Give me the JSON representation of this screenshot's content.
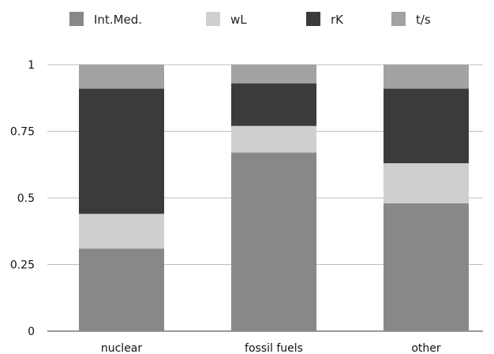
{
  "chart_data": {
    "type": "bar",
    "stacked": true,
    "categories": [
      "nuclear",
      "fossil fuels",
      "other"
    ],
    "series": [
      {
        "name": "Int.Med.",
        "values": [
          0.31,
          0.67,
          0.48
        ],
        "color": "#888888"
      },
      {
        "name": "wL",
        "values": [
          0.13,
          0.1,
          0.15
        ],
        "color": "#cfcfcf"
      },
      {
        "name": "rK",
        "values": [
          0.47,
          0.16,
          0.28
        ],
        "color": "#3b3b3b"
      },
      {
        "name": "t/s",
        "values": [
          0.09,
          0.07,
          0.09
        ],
        "color": "#a2a2a2"
      }
    ],
    "yticks": [
      "0",
      "0.25",
      "0.5",
      "0.75",
      "1"
    ],
    "ylim": [
      0,
      1
    ],
    "legend_position": "top",
    "grid": true
  }
}
